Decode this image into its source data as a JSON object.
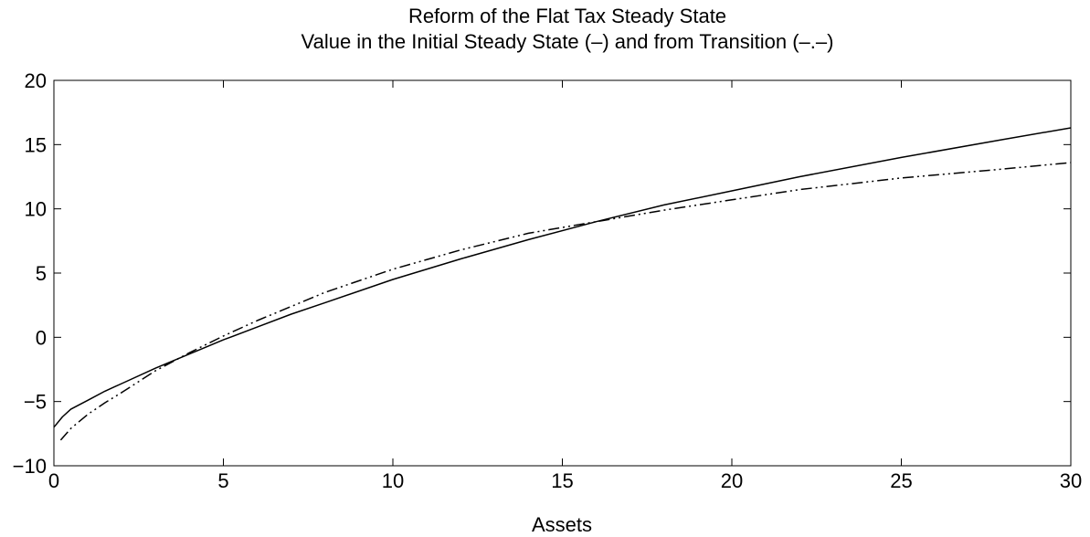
{
  "chart_data": {
    "type": "line",
    "title": "Reform of the Flat Tax Steady State",
    "subtitle": "Value in the Initial Steady State (–) and from Transition (–.–)",
    "xlabel": "Assets",
    "ylabel": "",
    "xlim": [
      0,
      30
    ],
    "ylim": [
      -10,
      20
    ],
    "xticks": [
      0,
      5,
      10,
      15,
      20,
      25,
      30
    ],
    "yticks": [
      -10,
      -5,
      0,
      5,
      10,
      15,
      20
    ],
    "xtick_labels": [
      "0",
      "5",
      "10",
      "15",
      "20",
      "25",
      "30"
    ],
    "ytick_labels": [
      "−10",
      "−5",
      "0",
      "5",
      "10",
      "15",
      "20"
    ],
    "grid": false,
    "series": [
      {
        "style": "solid",
        "color": "#000000",
        "x": [
          0,
          0.25,
          0.5,
          1,
          1.5,
          2,
          3,
          4,
          5,
          6,
          7,
          8,
          10,
          12,
          14,
          16,
          18,
          20,
          22,
          25,
          28,
          30
        ],
        "y": [
          -7.0,
          -6.2,
          -5.6,
          -4.9,
          -4.2,
          -3.6,
          -2.4,
          -1.3,
          -0.2,
          0.8,
          1.8,
          2.7,
          4.5,
          6.1,
          7.6,
          9.0,
          10.3,
          11.4,
          12.5,
          14.0,
          15.4,
          16.3
        ]
      },
      {
        "style": "dashdot",
        "color": "#000000",
        "x": [
          0.2,
          0.5,
          1,
          1.5,
          2,
          3,
          4,
          5,
          6,
          7,
          8,
          10,
          12,
          14,
          16,
          18,
          20,
          22,
          25,
          28,
          30
        ],
        "y": [
          -8.0,
          -7.1,
          -6.0,
          -5.1,
          -4.3,
          -2.6,
          -1.2,
          0.1,
          1.3,
          2.4,
          3.5,
          5.3,
          6.8,
          8.1,
          9.0,
          9.9,
          10.7,
          11.5,
          12.4,
          13.1,
          13.6
        ]
      }
    ]
  }
}
